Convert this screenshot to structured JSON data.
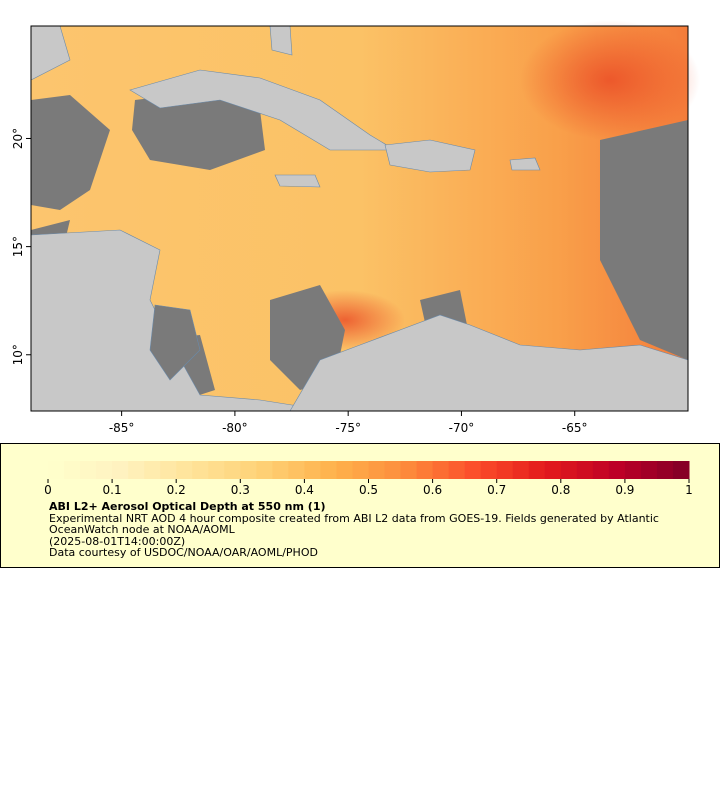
{
  "chart_data": {
    "type": "map",
    "xlim": [
      -89,
      -60
    ],
    "ylim": [
      7.4,
      25.2
    ],
    "xticks": [
      {
        "value": -85,
        "label": "-85°"
      },
      {
        "value": -80,
        "label": "-80°"
      },
      {
        "value": -75,
        "label": "-75°"
      },
      {
        "value": -70,
        "label": "-70°"
      },
      {
        "value": -65,
        "label": "-65°"
      }
    ],
    "yticks": [
      {
        "value": 10,
        "label": "10°"
      },
      {
        "value": 15,
        "label": "15°"
      },
      {
        "value": 20,
        "label": "20°"
      }
    ],
    "colorbar": {
      "range": [
        0,
        1
      ],
      "ticks": [
        0,
        0.1,
        0.2,
        0.3,
        0.4,
        0.5,
        0.6,
        0.7,
        0.8,
        0.9,
        1
      ],
      "colors": [
        "#ffffcc",
        "#fff2c0",
        "#ffe49a",
        "#fed176",
        "#feb24c",
        "#fd8d3c",
        "#fc4e2a",
        "#e31a1c",
        "#bd0026",
        "#800026"
      ]
    },
    "title": "ABI L2+ Aerosol Optical Depth at 550 nm (1)",
    "description": "Experimental NRT AOD 4 hour composite created from ABI L2 data from GOES-19. Fields generated by Atlantic OceanWatch node at NOAA/AOML",
    "timestamp": "(2025-08-01T14:00:00Z)",
    "credit": "Data courtesy of USDOC/NOAA/OAR/AOML/PHOD"
  }
}
